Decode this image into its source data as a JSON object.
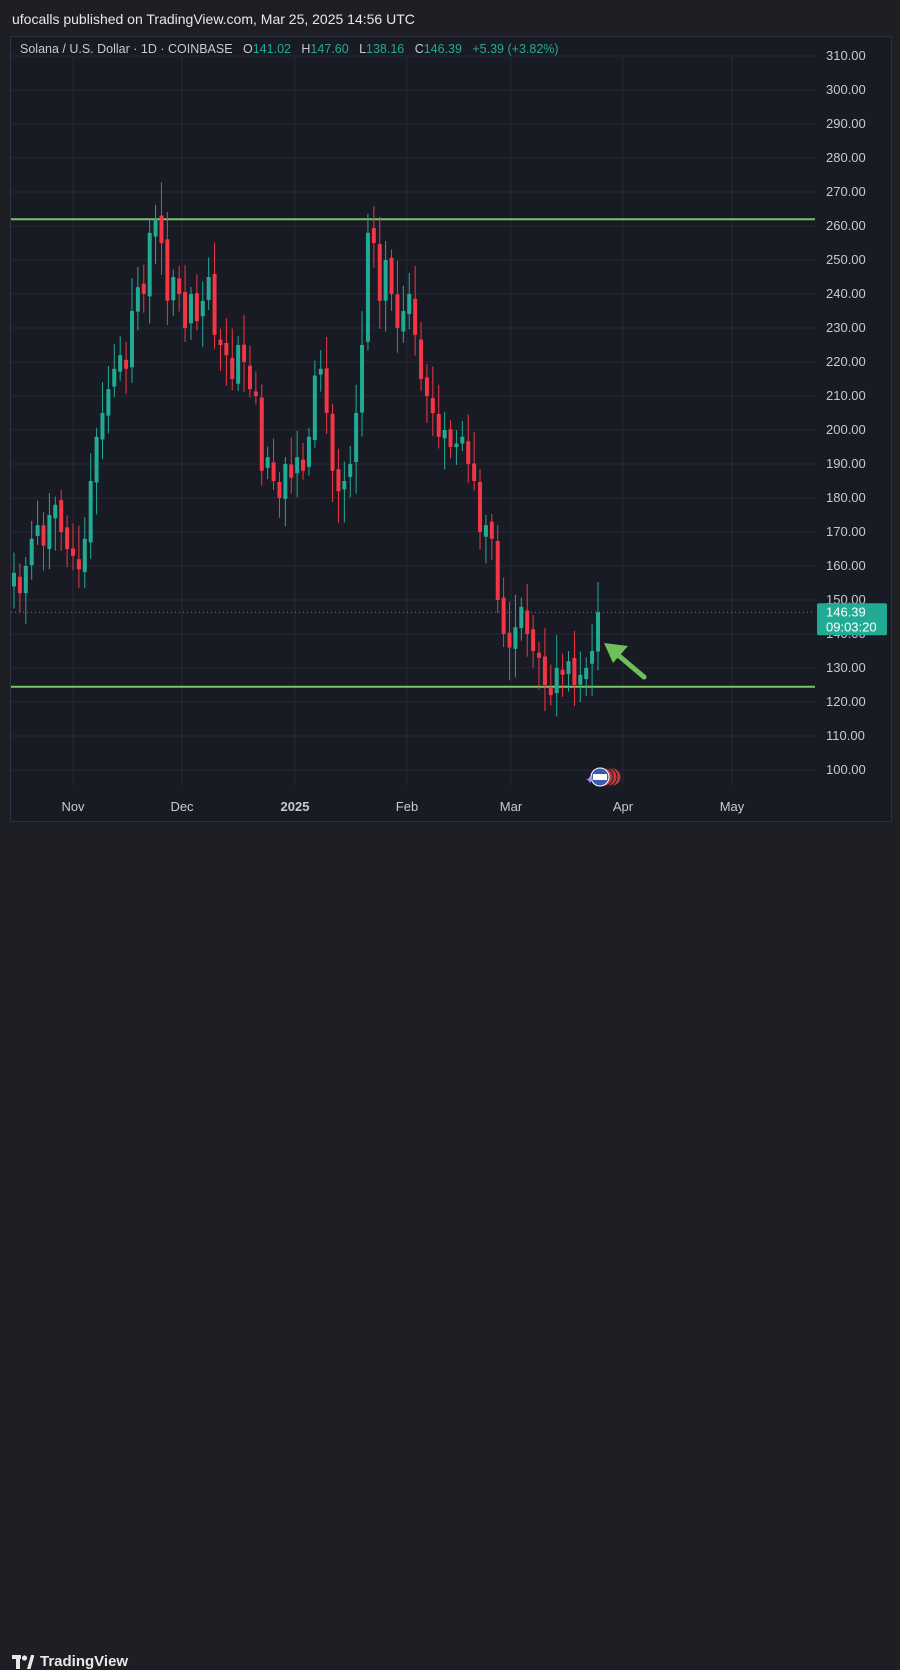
{
  "header": {
    "published_by": "ufocalls published on TradingView.com, Mar 25, 2025 14:56 UTC"
  },
  "legend": {
    "symbol": "Solana / U.S. Dollar · 1D · COINBASE",
    "o_label": "O",
    "o_value": "141.02",
    "h_label": "H",
    "h_value": "147.60",
    "l_label": "L",
    "l_value": "138.16",
    "c_label": "C",
    "c_value": "146.39",
    "change": "+5.39 (+3.82%)"
  },
  "price_label": {
    "price": "146.39",
    "countdown": "09:03:20"
  },
  "footer": {
    "brand": "TradingView"
  },
  "colors": {
    "up": "#22ab94",
    "down": "#f23645",
    "level_line": "#79c466",
    "arrow": "#6fbf5a",
    "price_tag": "#22ab94"
  },
  "chart_data": {
    "type": "candlestick",
    "symbol": "SOLUSD",
    "timeframe": "1D",
    "ylim": [
      95,
      315
    ],
    "yticks": [
      100,
      110,
      120,
      130,
      140,
      150,
      160,
      170,
      180,
      190,
      200,
      210,
      220,
      230,
      240,
      250,
      260,
      270,
      280,
      290,
      300,
      310
    ],
    "ytick_labels": [
      "100.00",
      "110.00",
      "120.00",
      "130.00",
      "140.00",
      "150.00",
      "160.00",
      "170.00",
      "180.00",
      "190.00",
      "200.00",
      "210.00",
      "220.00",
      "230.00",
      "240.00",
      "250.00",
      "260.00",
      "270.00",
      "280.00",
      "290.00",
      "300.00",
      "310.00"
    ],
    "xticks": [
      {
        "label": "Nov",
        "bold": false
      },
      {
        "label": "Dec",
        "bold": false
      },
      {
        "label": "2025",
        "bold": true
      },
      {
        "label": "Feb",
        "bold": false
      },
      {
        "label": "Mar",
        "bold": false
      },
      {
        "label": "Apr",
        "bold": false
      },
      {
        "label": "May",
        "bold": false
      }
    ],
    "horizontal_levels": [
      262,
      124.5
    ],
    "last_price": 146.39,
    "closes": [
      158,
      152,
      160,
      168,
      172,
      166,
      175,
      178,
      170,
      165,
      163,
      159,
      168,
      185,
      198,
      205,
      212,
      218,
      222,
      218,
      235,
      242,
      240,
      258,
      262,
      255,
      238,
      245,
      240,
      230,
      240,
      232,
      238,
      245,
      228,
      225,
      222,
      215,
      225,
      220,
      212,
      210,
      188,
      192,
      185,
      180,
      190,
      186,
      192,
      188,
      198,
      216,
      218,
      205,
      188,
      182,
      185,
      190,
      205,
      225,
      258,
      255,
      238,
      250,
      240,
      230,
      235,
      240,
      228,
      215,
      210,
      205,
      198,
      200,
      195,
      196,
      198,
      190,
      185,
      170,
      172,
      168,
      150,
      140,
      136,
      142,
      148,
      140,
      135,
      133,
      125,
      122,
      130,
      128,
      132,
      125,
      128,
      130,
      135,
      146.39
    ],
    "opens_offset_note": ""
  }
}
